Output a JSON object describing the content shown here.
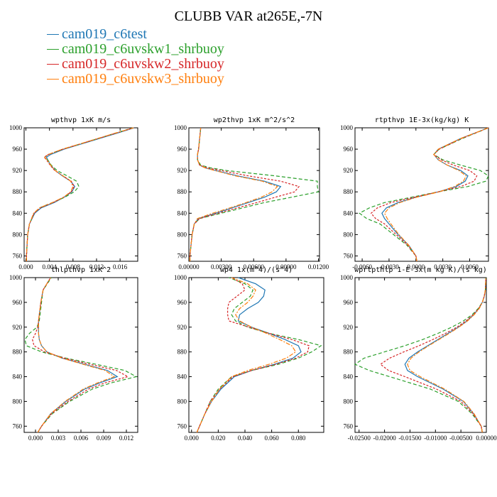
{
  "figure": {
    "title": "CLUBB VAR at265E,-7N"
  },
  "legend": [
    {
      "name": "cam019_c6test",
      "color": "#1f77b4"
    },
    {
      "name": "cam019_c6uvskw1_shrbuoy",
      "color": "#2ca02c"
    },
    {
      "name": "cam019_c6uvskw2_shrbuoy",
      "color": "#d62728"
    },
    {
      "name": "cam019_c6uvskw3_shrbuoy",
      "color": "#ff7f0e"
    }
  ],
  "chart_data": [
    {
      "type": "line",
      "title": "wpthvp  1xK m/s",
      "xlim": [
        -0.0003,
        0.019
      ],
      "ylim": [
        1000,
        750
      ],
      "xticks": [
        0.0,
        0.004,
        0.008,
        0.012,
        0.016
      ],
      "xtick_labels": [
        "0.000",
        "0.004",
        "0.008",
        "0.012",
        "0.016"
      ],
      "yticks": [
        760,
        800,
        840,
        880,
        920,
        960,
        1000
      ],
      "y": [
        750,
        760,
        780,
        800,
        820,
        840,
        850,
        860,
        870,
        880,
        890,
        900,
        910,
        920,
        930,
        940,
        945,
        950,
        960,
        970,
        980,
        990,
        1000
      ],
      "series": [
        {
          "name": "cam019_c6test",
          "values": [
            0.0001,
            0.0001,
            0.0002,
            0.0003,
            0.0006,
            0.0015,
            0.0026,
            0.0048,
            0.0065,
            0.0078,
            0.0083,
            0.0076,
            0.0062,
            0.005,
            0.0042,
            0.0037,
            0.0035,
            0.0042,
            0.0065,
            0.0095,
            0.0125,
            0.0155,
            0.0184
          ]
        },
        {
          "name": "cam019_c6uvskw1_shrbuoy",
          "values": [
            0.0001,
            0.0001,
            0.0002,
            0.0003,
            0.0006,
            0.0014,
            0.0023,
            0.0045,
            0.0066,
            0.0082,
            0.009,
            0.0086,
            0.007,
            0.0053,
            0.0043,
            0.0037,
            0.0032,
            0.0038,
            0.0063,
            0.0093,
            0.0123,
            0.0152,
            0.0182
          ]
        },
        {
          "name": "cam019_c6uvskw2_shrbuoy",
          "values": [
            0.0001,
            0.0001,
            0.0002,
            0.0003,
            0.0006,
            0.0014,
            0.0024,
            0.0046,
            0.0064,
            0.0077,
            0.0082,
            0.0077,
            0.0063,
            0.0049,
            0.0041,
            0.0035,
            0.0031,
            0.0038,
            0.0063,
            0.0093,
            0.0123,
            0.0153,
            0.0183
          ]
        },
        {
          "name": "cam019_c6uvskw3_shrbuoy",
          "values": [
            0.0001,
            0.0001,
            0.0002,
            0.0003,
            0.0006,
            0.0013,
            0.0023,
            0.0045,
            0.0064,
            0.0076,
            0.008,
            0.0076,
            0.0063,
            0.005,
            0.0042,
            0.0036,
            0.0032,
            0.0038,
            0.0062,
            0.0092,
            0.0122,
            0.0152,
            0.0183
          ]
        }
      ]
    },
    {
      "type": "line",
      "title": "wp2thvp  1xK m^2/s^2",
      "xlim": [
        0.0,
        0.0121
      ],
      "ylim": [
        1000,
        750
      ],
      "xticks": [
        0.0,
        0.003,
        0.006,
        0.009,
        0.012
      ],
      "xtick_labels": [
        "0.00000",
        "0.00300",
        "0.00600",
        "0.00900",
        "0.01200"
      ],
      "yticks": [
        760,
        800,
        840,
        880,
        920,
        960,
        1000
      ],
      "y": [
        750,
        760,
        780,
        800,
        820,
        830,
        840,
        850,
        860,
        870,
        880,
        890,
        900,
        910,
        920,
        925,
        930,
        940,
        950,
        960,
        980,
        1000
      ],
      "series": [
        {
          "name": "cam019_c6test",
          "values": [
            0.0001,
            0.0001,
            0.0002,
            0.0003,
            0.0005,
            0.0009,
            0.0025,
            0.004,
            0.0055,
            0.007,
            0.0081,
            0.0085,
            0.007,
            0.0045,
            0.0025,
            0.0015,
            0.001,
            0.0008,
            0.0008,
            0.0009,
            0.001,
            0.0011
          ]
        },
        {
          "name": "cam019_c6uvskw1_shrbuoy",
          "values": [
            0.0001,
            0.0001,
            0.0002,
            0.0003,
            0.0005,
            0.001,
            0.003,
            0.005,
            0.007,
            0.0095,
            0.012,
            0.0119,
            0.0119,
            0.008,
            0.0035,
            0.002,
            0.0011,
            0.0008,
            0.0008,
            0.0009,
            0.001,
            0.0011
          ]
        },
        {
          "name": "cam019_c6uvskw2_shrbuoy",
          "values": [
            0.0001,
            0.0001,
            0.0002,
            0.0003,
            0.0005,
            0.001,
            0.0027,
            0.0045,
            0.0063,
            0.008,
            0.0098,
            0.0102,
            0.0085,
            0.0055,
            0.003,
            0.0017,
            0.001,
            0.0008,
            0.0008,
            0.0009,
            0.001,
            0.0011
          ]
        },
        {
          "name": "cam019_c6uvskw3_shrbuoy",
          "values": [
            0.0001,
            0.0001,
            0.0002,
            0.0003,
            0.0005,
            0.0008,
            0.0022,
            0.0038,
            0.0053,
            0.0067,
            0.0077,
            0.0082,
            0.0068,
            0.0043,
            0.0024,
            0.0015,
            0.001,
            0.0008,
            0.0008,
            0.0009,
            0.001,
            0.0011
          ]
        }
      ]
    },
    {
      "type": "line",
      "title": "rtpthvp  1E-3x(kg/kg) K",
      "xlim": [
        -0.0068,
        0.0081
      ],
      "ylim": [
        1000,
        750
      ],
      "xticks": [
        -0.006,
        -0.003,
        0.0,
        0.003,
        0.006
      ],
      "xtick_labels": [
        "-0.0060",
        "-0.0030",
        "0.0000",
        "0.0030",
        "0.0060"
      ],
      "yticks": [
        760,
        800,
        840,
        880,
        920,
        960,
        1000
      ],
      "y": [
        750,
        760,
        780,
        800,
        820,
        830,
        840,
        850,
        860,
        870,
        880,
        890,
        900,
        910,
        920,
        930,
        940,
        950,
        960,
        980,
        1000
      ],
      "series": [
        {
          "name": "cam019_c6test",
          "values": [
            0.0001,
            0.0,
            -0.0008,
            -0.002,
            -0.003,
            -0.0035,
            -0.0038,
            -0.0033,
            -0.002,
            0.0,
            0.0025,
            0.0045,
            0.0055,
            0.0058,
            0.005,
            0.0035,
            0.0025,
            0.002,
            0.0025,
            0.005,
            0.0081
          ]
        },
        {
          "name": "cam019_c6uvskw1_shrbuoy",
          "values": [
            0.0001,
            0.0,
            -0.001,
            -0.0025,
            -0.004,
            -0.0055,
            -0.0063,
            -0.0052,
            -0.0035,
            -0.0005,
            0.0025,
            0.0058,
            0.0078,
            0.0081,
            0.0072,
            0.005,
            0.003,
            0.002,
            0.0026,
            0.0052,
            0.0081
          ]
        },
        {
          "name": "cam019_c6uvskw2_shrbuoy",
          "values": [
            0.0001,
            0.0,
            -0.0009,
            -0.0022,
            -0.0035,
            -0.0045,
            -0.005,
            -0.0043,
            -0.0028,
            -0.0002,
            0.0025,
            0.005,
            0.0065,
            0.0068,
            0.006,
            0.0042,
            0.0028,
            0.002,
            0.0026,
            0.0051,
            0.0081
          ]
        },
        {
          "name": "cam019_c6uvskw3_shrbuoy",
          "values": [
            0.0001,
            0.0,
            -0.0008,
            -0.0019,
            -0.0028,
            -0.0032,
            -0.0035,
            -0.003,
            -0.0018,
            0.0001,
            0.0026,
            0.0043,
            0.0053,
            0.0056,
            0.0048,
            0.0035,
            0.0025,
            0.002,
            0.0025,
            0.005,
            0.0081
          ]
        }
      ]
    },
    {
      "type": "line",
      "title": "thlpthvp  1xK^2",
      "xlim": [
        -0.0015,
        0.0135
      ],
      "ylim": [
        1000,
        750
      ],
      "xticks": [
        0.0,
        0.003,
        0.006,
        0.009,
        0.012
      ],
      "xtick_labels": [
        "0.000",
        "0.003",
        "0.006",
        "0.009",
        "0.012"
      ],
      "yticks": [
        760,
        800,
        840,
        880,
        920,
        960,
        1000
      ],
      "y": [
        750,
        760,
        780,
        800,
        820,
        830,
        840,
        850,
        860,
        870,
        880,
        890,
        900,
        910,
        920,
        930,
        940,
        960,
        980,
        1000
      ],
      "series": [
        {
          "name": "cam019_c6test",
          "values": [
            0.0003,
            0.0008,
            0.002,
            0.004,
            0.0065,
            0.0085,
            0.0108,
            0.0095,
            0.0065,
            0.0035,
            0.0015,
            0.0008,
            0.0005,
            0.0004,
            0.0004,
            0.0004,
            0.0005,
            0.0007,
            0.001,
            0.002
          ]
        },
        {
          "name": "cam019_c6uvskw1_shrbuoy",
          "values": [
            0.0003,
            0.0008,
            0.0022,
            0.0045,
            0.0075,
            0.01,
            0.0133,
            0.0118,
            0.008,
            0.004,
            0.0008,
            -0.0012,
            -0.0014,
            -0.0008,
            0.0002,
            0.0005,
            0.0006,
            0.0008,
            0.001,
            0.0021
          ]
        },
        {
          "name": "cam019_c6uvskw2_shrbuoy",
          "values": [
            0.0003,
            0.0008,
            0.0021,
            0.0043,
            0.007,
            0.0092,
            0.0122,
            0.0107,
            0.0072,
            0.0038,
            0.0012,
            -0.0002,
            -0.0004,
            0.0,
            0.0003,
            0.0004,
            0.0005,
            0.0007,
            0.001,
            0.002
          ]
        },
        {
          "name": "cam019_c6uvskw3_shrbuoy",
          "values": [
            0.0003,
            0.0008,
            0.002,
            0.0039,
            0.0063,
            0.0082,
            0.0104,
            0.0092,
            0.0063,
            0.0035,
            0.0015,
            0.0008,
            0.0005,
            0.0004,
            0.0004,
            0.0004,
            0.0005,
            0.0007,
            0.001,
            0.002
          ]
        }
      ]
    },
    {
      "type": "line",
      "title": "wp4  1x(m^4)/(s^4)",
      "xlim": [
        -0.002,
        0.099
      ],
      "ylim": [
        1000,
        750
      ],
      "xticks": [
        0.0,
        0.02,
        0.04,
        0.06,
        0.08
      ],
      "xtick_labels": [
        "0.000",
        "0.020",
        "0.040",
        "0.060",
        "0.080"
      ],
      "yticks": [
        760,
        800,
        840,
        880,
        920,
        960,
        1000
      ],
      "y": [
        750,
        760,
        780,
        800,
        820,
        840,
        850,
        860,
        870,
        880,
        890,
        900,
        910,
        920,
        930,
        940,
        950,
        960,
        970,
        980,
        990,
        1000
      ],
      "series": [
        {
          "name": "cam019_c6test",
          "values": [
            0.004,
            0.006,
            0.01,
            0.015,
            0.022,
            0.032,
            0.045,
            0.062,
            0.076,
            0.082,
            0.08,
            0.07,
            0.058,
            0.045,
            0.035,
            0.036,
            0.042,
            0.05,
            0.054,
            0.055,
            0.048,
            0.035
          ]
        },
        {
          "name": "cam019_c6uvskw1_shrbuoy",
          "values": [
            0.004,
            0.006,
            0.01,
            0.014,
            0.02,
            0.03,
            0.045,
            0.065,
            0.08,
            0.09,
            0.097,
            0.08,
            0.058,
            0.042,
            0.033,
            0.03,
            0.032,
            0.038,
            0.044,
            0.046,
            0.04,
            0.028
          ]
        },
        {
          "name": "cam019_c6uvskw2_shrbuoy",
          "values": [
            0.004,
            0.006,
            0.01,
            0.014,
            0.021,
            0.031,
            0.045,
            0.063,
            0.078,
            0.087,
            0.088,
            0.075,
            0.058,
            0.043,
            0.028,
            0.027,
            0.027,
            0.028,
            0.034,
            0.04,
            0.038,
            0.03
          ]
        },
        {
          "name": "cam019_c6uvskw3_shrbuoy",
          "values": [
            0.004,
            0.006,
            0.01,
            0.015,
            0.021,
            0.03,
            0.042,
            0.058,
            0.071,
            0.078,
            0.075,
            0.066,
            0.056,
            0.045,
            0.036,
            0.033,
            0.036,
            0.042,
            0.046,
            0.048,
            0.042,
            0.03
          ]
        }
      ]
    },
    {
      "type": "line",
      "title": "wprtpthlp  1-E-3x(m kg K)/(s kg)",
      "xlim": [
        -0.0258,
        0.0
      ],
      "ylim": [
        1000,
        750
      ],
      "xticks": [
        -0.025,
        -0.02,
        -0.015,
        -0.01,
        -0.005,
        0.0
      ],
      "xtick_labels": [
        "-0.02500",
        "-0.02000",
        "-0.01500",
        "-0.01000",
        "-0.00500",
        "0.00000"
      ],
      "yticks": [
        760,
        800,
        840,
        880,
        920,
        960,
        1000
      ],
      "y": [
        750,
        760,
        780,
        800,
        820,
        840,
        850,
        860,
        870,
        880,
        890,
        900,
        910,
        920,
        930,
        940,
        950,
        960,
        970,
        980,
        1000
      ],
      "series": [
        {
          "name": "cam019_c6test",
          "values": [
            -0.0008,
            -0.001,
            -0.0025,
            -0.0045,
            -0.0085,
            -0.0135,
            -0.0155,
            -0.016,
            -0.0152,
            -0.0135,
            -0.0115,
            -0.0095,
            -0.0075,
            -0.0055,
            -0.0038,
            -0.0025,
            -0.0015,
            -0.0008,
            -0.0004,
            -0.0002,
            -0.0001
          ]
        },
        {
          "name": "cam019_c6uvskw1_shrbuoy",
          "values": [
            -0.0008,
            -0.001,
            -0.0028,
            -0.0055,
            -0.011,
            -0.019,
            -0.023,
            -0.0258,
            -0.024,
            -0.02,
            -0.016,
            -0.0125,
            -0.0095,
            -0.0068,
            -0.0045,
            -0.0028,
            -0.0016,
            -0.0008,
            -0.0004,
            -0.0002,
            -0.0001
          ]
        },
        {
          "name": "cam019_c6uvskw2_shrbuoy",
          "values": [
            -0.0008,
            -0.001,
            -0.0026,
            -0.005,
            -0.0098,
            -0.016,
            -0.0192,
            -0.0208,
            -0.019,
            -0.0162,
            -0.0132,
            -0.0105,
            -0.008,
            -0.0058,
            -0.004,
            -0.0026,
            -0.0015,
            -0.0008,
            -0.0004,
            -0.0002,
            -0.0001
          ]
        },
        {
          "name": "cam019_c6uvskw3_shrbuoy",
          "values": [
            -0.0008,
            -0.001,
            -0.0024,
            -0.0044,
            -0.0082,
            -0.013,
            -0.015,
            -0.0155,
            -0.0148,
            -0.0132,
            -0.0113,
            -0.0093,
            -0.0073,
            -0.0054,
            -0.0037,
            -0.0024,
            -0.0014,
            -0.0008,
            -0.0004,
            -0.0002,
            -0.0001
          ]
        }
      ]
    }
  ]
}
